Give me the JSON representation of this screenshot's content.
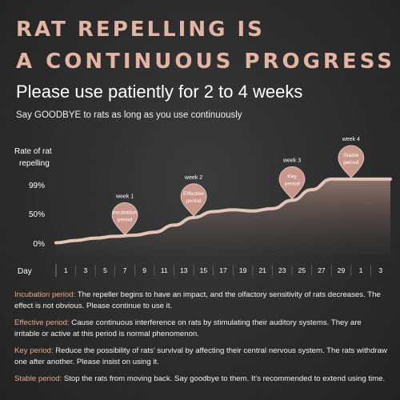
{
  "headline": {
    "line1": "RAT REPELLING IS",
    "line2": "A  CONTINUOUS PROGRESS"
  },
  "subheading": "Please use patiently for 2 to 4 weeks",
  "tagline": "Say GOODBYE to rats as long as you use continuously",
  "colors": {
    "accent": "#e4b4a3",
    "bubble": "#c8968a",
    "curve_fill": "#9a7b72",
    "curve_line": "#e3c3b6",
    "term": "#e7a98f"
  },
  "chart_data": {
    "type": "area",
    "ylabel_line1": "Rate of rat",
    "ylabel_line2": "repelling",
    "xlabel": "Day",
    "y_ticks": [
      {
        "label": "99%",
        "value": 99
      },
      {
        "label": "50%",
        "value": 50
      },
      {
        "label": "0%",
        "value": 0
      }
    ],
    "x_ticks": [
      "1",
      "3",
      "5",
      "7",
      "9",
      "11",
      "13",
      "15",
      "17",
      "19",
      "21",
      "23",
      "25",
      "27",
      "29",
      "1",
      "3"
    ],
    "x_day_values": [
      1,
      3,
      5,
      7,
      9,
      11,
      13,
      15,
      17,
      19,
      21,
      23,
      25,
      27,
      29,
      31,
      33
    ],
    "curve": [
      {
        "day": 0,
        "value": 2
      },
      {
        "day": 2,
        "value": 6
      },
      {
        "day": 4,
        "value": 10
      },
      {
        "day": 6,
        "value": 13
      },
      {
        "day": 8,
        "value": 15
      },
      {
        "day": 10,
        "value": 20
      },
      {
        "day": 12,
        "value": 32
      },
      {
        "day": 14,
        "value": 45
      },
      {
        "day": 16,
        "value": 55
      },
      {
        "day": 18,
        "value": 58
      },
      {
        "day": 20,
        "value": 56
      },
      {
        "day": 22,
        "value": 60
      },
      {
        "day": 24,
        "value": 74
      },
      {
        "day": 26,
        "value": 92
      },
      {
        "day": 28,
        "value": 110
      },
      {
        "day": 30,
        "value": 110
      },
      {
        "day": 34,
        "value": 110
      }
    ],
    "markers": [
      {
        "week": "week 1",
        "label_line1": "Incubation",
        "label_line2": "period",
        "day": 7,
        "value": 13
      },
      {
        "week": "week 2",
        "label_line1": "Effective",
        "label_line2": "period",
        "day": 14,
        "value": 45
      },
      {
        "week": "week 3",
        "label_line1": "Key",
        "label_line2": "period",
        "day": 24,
        "value": 74
      },
      {
        "week": "week 4",
        "label_line1": "Stable",
        "label_line2": "period",
        "day": 30,
        "value": 110
      }
    ],
    "grid": false
  },
  "descriptions": [
    {
      "term": "Incubation period:",
      "text": " The repeller begins to have an impact, and the olfactory sensitivity of rats decreases. The effect is not obvious. Please continue to use it."
    },
    {
      "term": "Effective period:",
      "text": " Cause continuous interference on rats by stimulating their auditory systems. They are irritable or active at this period is normal phenomenon."
    },
    {
      "term": "Key period:",
      "text": " Reduce the possibility of rats’ survival by affecting their central nervous system. The rats withdraw one after another. Please insist on using it."
    },
    {
      "term": "Stable period:",
      "text": " Stop the rats from moving back. Say goodbye to them. It's recommended to extend using time."
    }
  ]
}
